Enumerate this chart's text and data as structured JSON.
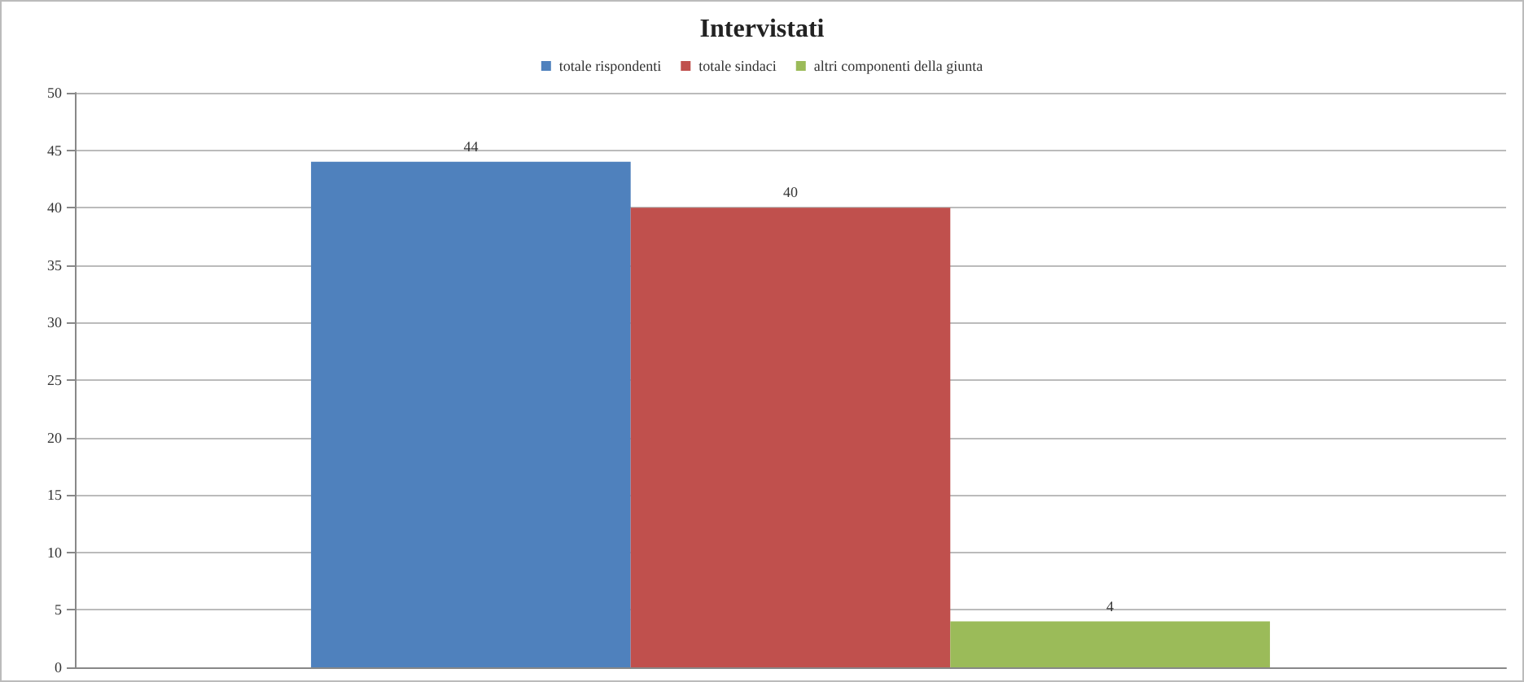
{
  "chart_data": {
    "type": "bar",
    "title": "Intervistati",
    "categories": [
      null
    ],
    "series": [
      {
        "name": "totale rispondenti",
        "color": "#4f81bd",
        "values": [
          44
        ]
      },
      {
        "name": "totale sindaci",
        "color": "#c0504d",
        "values": [
          40
        ]
      },
      {
        "name": "altri componenti della giunta",
        "color": "#9bbb59",
        "values": [
          4
        ]
      }
    ],
    "ylim": [
      0,
      50
    ],
    "yticks": [
      0,
      5,
      10,
      15,
      20,
      25,
      30,
      35,
      40,
      45,
      50
    ],
    "grid": "y",
    "legend": "top",
    "data_labels": true
  }
}
